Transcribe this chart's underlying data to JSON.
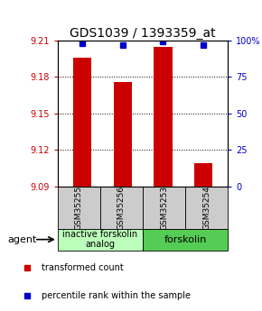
{
  "title": "GDS1039 / 1393359_at",
  "samples": [
    "GSM35255",
    "GSM35256",
    "GSM35253",
    "GSM35254"
  ],
  "bar_values": [
    9.196,
    9.176,
    9.205,
    9.109
  ],
  "percentile_values": [
    98,
    97,
    99,
    97
  ],
  "y_min": 9.09,
  "y_max": 9.21,
  "y_ticks": [
    9.09,
    9.12,
    9.15,
    9.18,
    9.21
  ],
  "right_y_ticks": [
    0,
    25,
    50,
    75,
    100
  ],
  "right_y_labels": [
    "0",
    "25",
    "50",
    "75",
    "100%"
  ],
  "bar_color": "#cc0000",
  "percentile_color": "#0000cc",
  "group1_label": "inactive forskolin\nanalog",
  "group2_label": "forskolin",
  "group1_color": "#bbffbb",
  "group2_color": "#55cc55",
  "agent_label": "agent",
  "legend_red_label": "transformed count",
  "legend_blue_label": "percentile rank within the sample",
  "sample_box_color": "#cccccc",
  "title_fontsize": 10,
  "tick_fontsize": 7,
  "legend_fontsize": 7,
  "sample_fontsize": 6.5,
  "group_fontsize": 7
}
